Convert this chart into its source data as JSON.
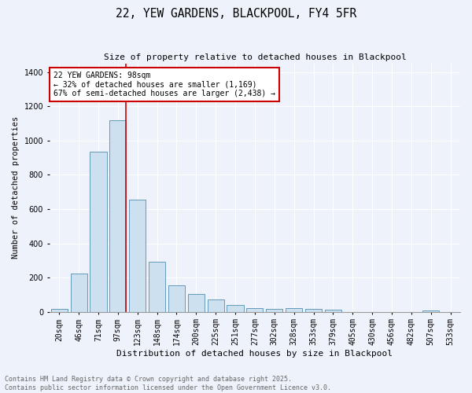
{
  "title": "22, YEW GARDENS, BLACKPOOL, FY4 5FR",
  "subtitle": "Size of property relative to detached houses in Blackpool",
  "xlabel": "Distribution of detached houses by size in Blackpool",
  "ylabel": "Number of detached properties",
  "categories": [
    "20sqm",
    "46sqm",
    "71sqm",
    "97sqm",
    "123sqm",
    "148sqm",
    "174sqm",
    "200sqm",
    "225sqm",
    "251sqm",
    "277sqm",
    "302sqm",
    "328sqm",
    "353sqm",
    "379sqm",
    "405sqm",
    "430sqm",
    "456sqm",
    "482sqm",
    "507sqm",
    "533sqm"
  ],
  "values": [
    15,
    225,
    935,
    1120,
    655,
    290,
    155,
    105,
    70,
    38,
    20,
    18,
    20,
    15,
    12,
    0,
    0,
    0,
    0,
    8,
    0
  ],
  "bar_color": "#cce0f0",
  "bar_edge_color": "#6699bb",
  "background_color": "#eef2fa",
  "grid_color": "#ffffff",
  "vline_color": "#cc0000",
  "vline_index": 3,
  "annotation_text": "22 YEW GARDENS: 98sqm\n← 32% of detached houses are smaller (1,169)\n67% of semi-detached houses are larger (2,438) →",
  "annotation_box_color": "#ffffff",
  "annotation_box_edge": "#cc0000",
  "footer_line1": "Contains HM Land Registry data © Crown copyright and database right 2025.",
  "footer_line2": "Contains public sector information licensed under the Open Government Licence v3.0.",
  "ylim": [
    0,
    1450
  ],
  "yticks": [
    0,
    200,
    400,
    600,
    800,
    1000,
    1200,
    1400
  ],
  "title_fontsize": 10.5,
  "subtitle_fontsize": 8,
  "ylabel_fontsize": 7.5,
  "xlabel_fontsize": 8,
  "tick_fontsize": 7,
  "annot_fontsize": 7,
  "footer_fontsize": 6
}
